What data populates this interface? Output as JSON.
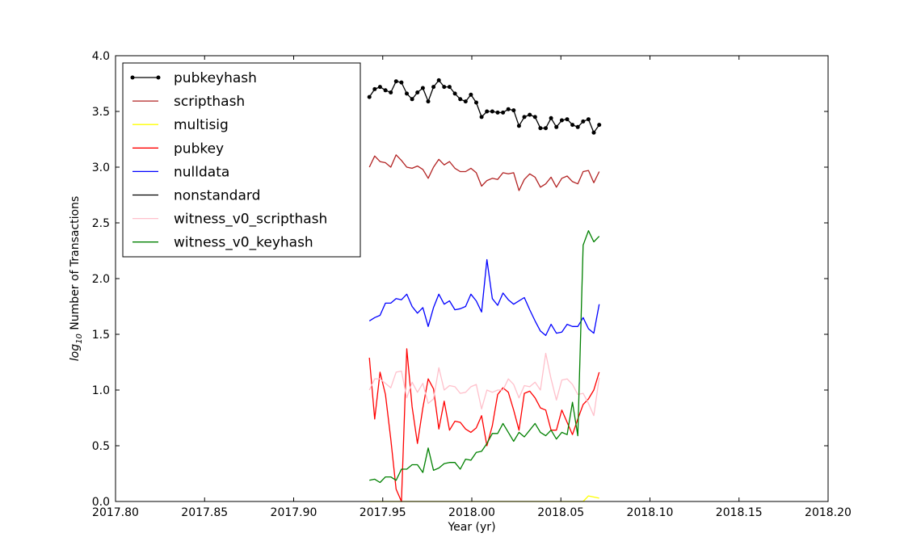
{
  "chart_data": {
    "type": "line",
    "xlabel": "Year (yr)",
    "ylabel_prefix": "log",
    "ylabel_subscript": "10",
    "ylabel_suffix": " Number of Transactions",
    "xlim": [
      2017.8,
      2018.2
    ],
    "ylim": [
      0.0,
      4.0
    ],
    "xticks": [
      "2017.80",
      "2017.85",
      "2017.90",
      "2017.95",
      "2018.00",
      "2018.05",
      "2018.10",
      "2018.15",
      "2018.20"
    ],
    "yticks": [
      "0.0",
      "0.5",
      "1.0",
      "1.5",
      "2.0",
      "2.5",
      "3.0",
      "3.5",
      "4.0"
    ],
    "legend_position": "upper-left",
    "grid": false,
    "x_start": 2017.9425,
    "x_step": 0.003,
    "series": [
      {
        "name": "pubkeyhash",
        "color": "#000000",
        "markers": true,
        "values": [
          3.63,
          3.7,
          3.72,
          3.69,
          3.67,
          3.77,
          3.76,
          3.66,
          3.61,
          3.67,
          3.71,
          3.59,
          3.72,
          3.78,
          3.72,
          3.72,
          3.66,
          3.61,
          3.59,
          3.65,
          3.58,
          3.45,
          3.5,
          3.5,
          3.49,
          3.49,
          3.52,
          3.51,
          3.37,
          3.45,
          3.47,
          3.45,
          3.35,
          3.35,
          3.44,
          3.36,
          3.42,
          3.43,
          3.38,
          3.36,
          3.41,
          3.43,
          3.31,
          3.38
        ]
      },
      {
        "name": "scripthash",
        "color": "#b22222",
        "markers": false,
        "values": [
          3.0,
          3.1,
          3.05,
          3.04,
          3.0,
          3.11,
          3.06,
          3.0,
          2.99,
          3.01,
          2.98,
          2.9,
          3.0,
          3.07,
          3.02,
          3.05,
          2.99,
          2.96,
          2.96,
          2.99,
          2.95,
          2.83,
          2.88,
          2.9,
          2.89,
          2.95,
          2.94,
          2.95,
          2.79,
          2.89,
          2.94,
          2.91,
          2.82,
          2.85,
          2.91,
          2.82,
          2.9,
          2.92,
          2.87,
          2.85,
          2.96,
          2.97,
          2.86,
          2.96
        ]
      },
      {
        "name": "multisig",
        "color": "#ffff00",
        "markers": false,
        "values": [
          0.0,
          0.0,
          0.0,
          0.0,
          0.0,
          0.0,
          0.0,
          0.0,
          0.0,
          0.0,
          0.0,
          0.0,
          0.0,
          0.0,
          0.0,
          0.0,
          0.0,
          0.0,
          0.0,
          0.0,
          0.0,
          0.0,
          0.0,
          0.0,
          0.0,
          0.0,
          0.0,
          0.0,
          0.0,
          0.0,
          0.0,
          0.0,
          0.0,
          0.0,
          0.0,
          0.0,
          0.0,
          0.0,
          0.0,
          0.0,
          0.0,
          0.05,
          0.04,
          0.03
        ]
      },
      {
        "name": "pubkey",
        "color": "#ff0000",
        "markers": false,
        "values": [
          1.29,
          0.74,
          1.16,
          0.96,
          0.56,
          0.11,
          0.0,
          1.37,
          0.85,
          0.52,
          0.84,
          1.1,
          1.01,
          0.65,
          0.9,
          0.64,
          0.72,
          0.71,
          0.65,
          0.62,
          0.66,
          0.77,
          0.5,
          0.68,
          0.96,
          1.02,
          0.98,
          0.82,
          0.64,
          0.97,
          0.99,
          0.93,
          0.84,
          0.82,
          0.64,
          0.64,
          0.82,
          0.71,
          0.6,
          0.74,
          0.87,
          0.92,
          1.0,
          1.16
        ]
      },
      {
        "name": "nulldata",
        "color": "#0000ff",
        "markers": false,
        "values": [
          1.62,
          1.65,
          1.67,
          1.78,
          1.78,
          1.82,
          1.81,
          1.86,
          1.75,
          1.69,
          1.74,
          1.57,
          1.74,
          1.86,
          1.77,
          1.8,
          1.72,
          1.73,
          1.75,
          1.86,
          1.8,
          1.7,
          2.17,
          1.82,
          1.76,
          1.87,
          1.81,
          1.77,
          1.8,
          1.83,
          1.72,
          1.62,
          1.53,
          1.49,
          1.59,
          1.51,
          1.52,
          1.59,
          1.57,
          1.57,
          1.65,
          1.55,
          1.51,
          1.77
        ]
      },
      {
        "name": "nonstandard",
        "color": "#000000",
        "markers": false,
        "values": []
      },
      {
        "name": "witness_v0_scripthash",
        "color": "#ffc0cb",
        "markers": false,
        "values": [
          1.0,
          1.1,
          1.1,
          1.06,
          1.02,
          1.16,
          1.17,
          0.93,
          1.07,
          0.98,
          1.06,
          0.88,
          0.92,
          1.2,
          1.0,
          1.04,
          1.03,
          0.97,
          0.98,
          1.03,
          1.05,
          0.83,
          1.0,
          0.98,
          1.0,
          1.0,
          1.1,
          1.05,
          0.93,
          1.04,
          1.03,
          1.07,
          1.0,
          1.33,
          1.1,
          0.91,
          1.09,
          1.1,
          1.05,
          0.96,
          0.97,
          0.88,
          0.77,
          1.11
        ]
      },
      {
        "name": "witness_v0_keyhash",
        "color": "#008000",
        "markers": false,
        "values": [
          0.19,
          0.2,
          0.17,
          0.22,
          0.22,
          0.19,
          0.29,
          0.29,
          0.33,
          0.33,
          0.26,
          0.48,
          0.28,
          0.3,
          0.34,
          0.35,
          0.35,
          0.29,
          0.38,
          0.37,
          0.44,
          0.45,
          0.52,
          0.61,
          0.61,
          0.7,
          0.62,
          0.54,
          0.62,
          0.58,
          0.64,
          0.7,
          0.62,
          0.59,
          0.64,
          0.56,
          0.62,
          0.6,
          0.89,
          0.59,
          2.3,
          2.43,
          2.33,
          2.38
        ]
      }
    ]
  }
}
